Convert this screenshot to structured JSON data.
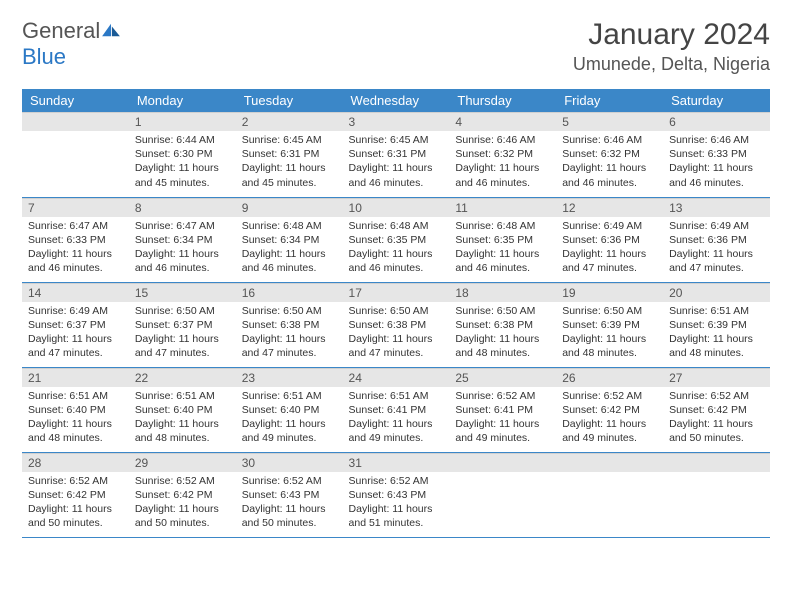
{
  "logo": {
    "text1": "General",
    "text2": "Blue"
  },
  "title": "January 2024",
  "location": "Umunede, Delta, Nigeria",
  "colors": {
    "header_bg": "#3b87c8",
    "header_text": "#ffffff",
    "daynum_bg": "#e6e6e6",
    "row_divider": "#3b87c8",
    "logo_blue": "#2b78c5",
    "text": "#333333"
  },
  "weekdays": [
    "Sunday",
    "Monday",
    "Tuesday",
    "Wednesday",
    "Thursday",
    "Friday",
    "Saturday"
  ],
  "weeks": [
    [
      null,
      {
        "d": "1",
        "sr": "6:44 AM",
        "ss": "6:30 PM",
        "dl": "11 hours and 45 minutes."
      },
      {
        "d": "2",
        "sr": "6:45 AM",
        "ss": "6:31 PM",
        "dl": "11 hours and 45 minutes."
      },
      {
        "d": "3",
        "sr": "6:45 AM",
        "ss": "6:31 PM",
        "dl": "11 hours and 46 minutes."
      },
      {
        "d": "4",
        "sr": "6:46 AM",
        "ss": "6:32 PM",
        "dl": "11 hours and 46 minutes."
      },
      {
        "d": "5",
        "sr": "6:46 AM",
        "ss": "6:32 PM",
        "dl": "11 hours and 46 minutes."
      },
      {
        "d": "6",
        "sr": "6:46 AM",
        "ss": "6:33 PM",
        "dl": "11 hours and 46 minutes."
      }
    ],
    [
      {
        "d": "7",
        "sr": "6:47 AM",
        "ss": "6:33 PM",
        "dl": "11 hours and 46 minutes."
      },
      {
        "d": "8",
        "sr": "6:47 AM",
        "ss": "6:34 PM",
        "dl": "11 hours and 46 minutes."
      },
      {
        "d": "9",
        "sr": "6:48 AM",
        "ss": "6:34 PM",
        "dl": "11 hours and 46 minutes."
      },
      {
        "d": "10",
        "sr": "6:48 AM",
        "ss": "6:35 PM",
        "dl": "11 hours and 46 minutes."
      },
      {
        "d": "11",
        "sr": "6:48 AM",
        "ss": "6:35 PM",
        "dl": "11 hours and 46 minutes."
      },
      {
        "d": "12",
        "sr": "6:49 AM",
        "ss": "6:36 PM",
        "dl": "11 hours and 47 minutes."
      },
      {
        "d": "13",
        "sr": "6:49 AM",
        "ss": "6:36 PM",
        "dl": "11 hours and 47 minutes."
      }
    ],
    [
      {
        "d": "14",
        "sr": "6:49 AM",
        "ss": "6:37 PM",
        "dl": "11 hours and 47 minutes."
      },
      {
        "d": "15",
        "sr": "6:50 AM",
        "ss": "6:37 PM",
        "dl": "11 hours and 47 minutes."
      },
      {
        "d": "16",
        "sr": "6:50 AM",
        "ss": "6:38 PM",
        "dl": "11 hours and 47 minutes."
      },
      {
        "d": "17",
        "sr": "6:50 AM",
        "ss": "6:38 PM",
        "dl": "11 hours and 47 minutes."
      },
      {
        "d": "18",
        "sr": "6:50 AM",
        "ss": "6:38 PM",
        "dl": "11 hours and 48 minutes."
      },
      {
        "d": "19",
        "sr": "6:50 AM",
        "ss": "6:39 PM",
        "dl": "11 hours and 48 minutes."
      },
      {
        "d": "20",
        "sr": "6:51 AM",
        "ss": "6:39 PM",
        "dl": "11 hours and 48 minutes."
      }
    ],
    [
      {
        "d": "21",
        "sr": "6:51 AM",
        "ss": "6:40 PM",
        "dl": "11 hours and 48 minutes."
      },
      {
        "d": "22",
        "sr": "6:51 AM",
        "ss": "6:40 PM",
        "dl": "11 hours and 48 minutes."
      },
      {
        "d": "23",
        "sr": "6:51 AM",
        "ss": "6:40 PM",
        "dl": "11 hours and 49 minutes."
      },
      {
        "d": "24",
        "sr": "6:51 AM",
        "ss": "6:41 PM",
        "dl": "11 hours and 49 minutes."
      },
      {
        "d": "25",
        "sr": "6:52 AM",
        "ss": "6:41 PM",
        "dl": "11 hours and 49 minutes."
      },
      {
        "d": "26",
        "sr": "6:52 AM",
        "ss": "6:42 PM",
        "dl": "11 hours and 49 minutes."
      },
      {
        "d": "27",
        "sr": "6:52 AM",
        "ss": "6:42 PM",
        "dl": "11 hours and 50 minutes."
      }
    ],
    [
      {
        "d": "28",
        "sr": "6:52 AM",
        "ss": "6:42 PM",
        "dl": "11 hours and 50 minutes."
      },
      {
        "d": "29",
        "sr": "6:52 AM",
        "ss": "6:42 PM",
        "dl": "11 hours and 50 minutes."
      },
      {
        "d": "30",
        "sr": "6:52 AM",
        "ss": "6:43 PM",
        "dl": "11 hours and 50 minutes."
      },
      {
        "d": "31",
        "sr": "6:52 AM",
        "ss": "6:43 PM",
        "dl": "11 hours and 51 minutes."
      },
      null,
      null,
      null
    ]
  ],
  "labels": {
    "sunrise": "Sunrise:",
    "sunset": "Sunset:",
    "daylight": "Daylight:"
  }
}
